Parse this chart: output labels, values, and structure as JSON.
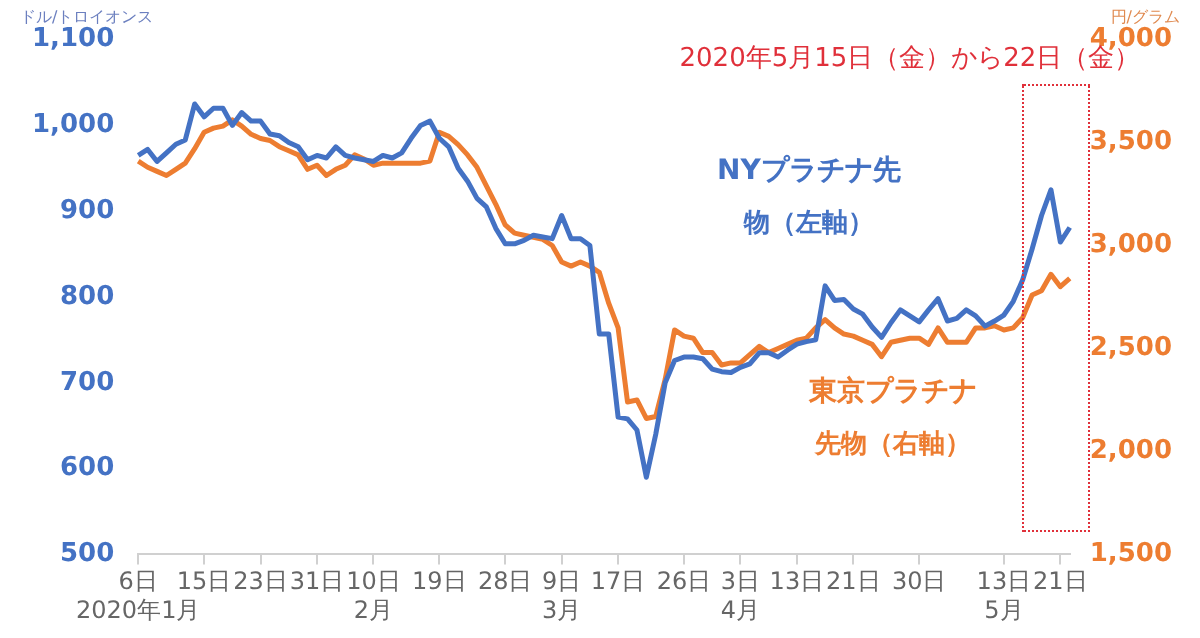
{
  "chart_data": {
    "type": "line",
    "categories": [
      "6日\n2020年1月",
      null,
      null,
      null,
      null,
      null,
      null,
      "15日",
      null,
      null,
      null,
      null,
      null,
      "23日",
      null,
      null,
      null,
      null,
      null,
      "31日",
      null,
      null,
      null,
      null,
      null,
      "10日\n2月",
      null,
      null,
      null,
      null,
      null,
      null,
      "19日",
      null,
      null,
      null,
      null,
      null,
      null,
      "28日",
      null,
      null,
      null,
      null,
      null,
      "9日\n3月",
      null,
      null,
      null,
      null,
      null,
      "17日",
      null,
      null,
      null,
      null,
      null,
      null,
      "26日",
      null,
      null,
      null,
      null,
      null,
      "3日\n4月",
      null,
      null,
      null,
      null,
      null,
      "13日",
      null,
      null,
      null,
      null,
      null,
      "21日",
      null,
      null,
      null,
      null,
      null,
      null,
      "30日",
      null,
      null,
      null,
      null,
      null,
      null,
      null,
      null,
      "13日\n5月",
      null,
      null,
      null,
      null,
      null,
      "21日",
      null
    ],
    "series": [
      {
        "name": "NYプラチナ先物（左軸）",
        "color": "#4472c4",
        "axis": "y",
        "values": [
          965,
          972,
          958,
          968,
          978,
          983,
          1025,
          1010,
          1020,
          1020,
          1000,
          1015,
          1005,
          1005,
          990,
          988,
          980,
          975,
          960,
          965,
          962,
          975,
          965,
          962,
          960,
          958,
          965,
          962,
          968,
          985,
          1000,
          1005,
          985,
          975,
          950,
          935,
          915,
          905,
          880,
          862,
          862,
          866,
          872,
          870,
          868,
          895,
          868,
          868,
          860,
          757,
          757,
          660,
          658,
          645,
          590,
          640,
          700,
          726,
          730,
          730,
          728,
          716,
          713,
          712,
          718,
          722,
          735,
          735,
          730,
          738,
          745,
          748,
          750,
          813,
          796,
          797,
          786,
          780,
          765,
          753,
          770,
          785,
          778,
          771,
          785,
          798,
          772,
          775,
          785,
          778,
          766,
          772,
          779,
          795,
          820,
          856,
          895,
          925,
          864,
          881
        ]
      },
      {
        "name": "東京プラチナ先物（右軸）",
        "color": "#ed7d31",
        "axis": "y2",
        "values": [
          3410,
          3380,
          3360,
          3340,
          3370,
          3400,
          3470,
          3550,
          3570,
          3580,
          3610,
          3580,
          3540,
          3520,
          3510,
          3480,
          3460,
          3440,
          3370,
          3390,
          3340,
          3370,
          3390,
          3440,
          3420,
          3390,
          3400,
          3400,
          3400,
          3400,
          3400,
          3410,
          3550,
          3530,
          3490,
          3440,
          3380,
          3290,
          3200,
          3100,
          3060,
          3050,
          3040,
          3030,
          3000,
          2920,
          2900,
          2920,
          2900,
          2870,
          2720,
          2600,
          2240,
          2250,
          2160,
          2170,
          2350,
          2590,
          2560,
          2550,
          2480,
          2480,
          2420,
          2430,
          2430,
          2470,
          2510,
          2480,
          2500,
          2520,
          2540,
          2550,
          2600,
          2640,
          2600,
          2570,
          2560,
          2540,
          2520,
          2460,
          2530,
          2540,
          2550,
          2550,
          2520,
          2600,
          2530,
          2530,
          2530,
          2600,
          2600,
          2610,
          2590,
          2600,
          2650,
          2760,
          2780,
          2860,
          2800,
          2840
        ]
      }
    ],
    "ylabel": "ドル/トロイオンス",
    "y2label": "円/グラム",
    "ylim": [
      500,
      1100
    ],
    "yticks": [
      {
        "value": 500,
        "label": "500"
      },
      {
        "value": 600,
        "label": "600"
      },
      {
        "value": 700,
        "label": "700"
      },
      {
        "value": 800,
        "label": "800"
      },
      {
        "value": 900,
        "label": "900"
      },
      {
        "value": 1000,
        "label": "1,000"
      },
      {
        "value": 1100,
        "label": "1,100"
      }
    ],
    "y2lim": [
      1500,
      4000
    ],
    "y2ticks": [
      {
        "value": 1500,
        "label": "1,500"
      },
      {
        "value": 2000,
        "label": "2,000"
      },
      {
        "value": 2500,
        "label": "2,500"
      },
      {
        "value": 3000,
        "label": "3,000"
      },
      {
        "value": 3500,
        "label": "3,500"
      },
      {
        "value": 4000,
        "label": "4,000"
      }
    ],
    "annotations": [
      "2020年5月15日（金）から22日（金）"
    ],
    "legend": false,
    "marker": "none",
    "line_style": "solid"
  }
}
